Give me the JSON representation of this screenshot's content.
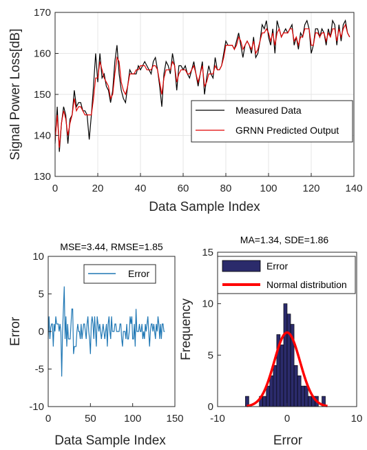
{
  "chart_data": [
    {
      "type": "line",
      "title": "",
      "xlabel": "Data Sample Index",
      "ylabel": "Signal Power Loss[dB]",
      "xlim": [
        0,
        140
      ],
      "ylim": [
        130,
        170
      ],
      "xticks": [
        "0",
        "20",
        "40",
        "60",
        "80",
        "100",
        "120",
        "140"
      ],
      "yticks": [
        "130",
        "140",
        "150",
        "160",
        "170"
      ],
      "grid": true,
      "legend_position": "lower-right",
      "colors": {
        "measured": "#000000",
        "predicted": "#e00000"
      },
      "series": [
        {
          "name": "Measured Data",
          "values": [
            138,
            147,
            136,
            143,
            147,
            145,
            138,
            144,
            145,
            151,
            147,
            148,
            148,
            146,
            146,
            145,
            139,
            145,
            152,
            160,
            153,
            160,
            154,
            155,
            152,
            151,
            148,
            151,
            158,
            162,
            155,
            151,
            149,
            148,
            152,
            156,
            155,
            155,
            155,
            157,
            156,
            157,
            158,
            157,
            156,
            155,
            158,
            159,
            156,
            152,
            147,
            155,
            158,
            157,
            155,
            160,
            157,
            151,
            157,
            157,
            156,
            157,
            155,
            154,
            156,
            158,
            155,
            152,
            155,
            158,
            150,
            154,
            157,
            155,
            154,
            159,
            156,
            156,
            157,
            160,
            163,
            162,
            162,
            162,
            161,
            163,
            165,
            162,
            159,
            162,
            163,
            162,
            160,
            164,
            159,
            160,
            163,
            167,
            166,
            168,
            164,
            162,
            166,
            160,
            168,
            166,
            164,
            165,
            166,
            165,
            166,
            167,
            162,
            164,
            161,
            165,
            164,
            167,
            168,
            166,
            160,
            162,
            166,
            166,
            164,
            166,
            165,
            162,
            166,
            164,
            168,
            167,
            162,
            167,
            163,
            167,
            168,
            165,
            164
          ]
        },
        {
          "name": "GRNN Predicted Output",
          "values": [
            139,
            145,
            137,
            143,
            146,
            144,
            140,
            143,
            145,
            149,
            146,
            147,
            147,
            146,
            145,
            145,
            145,
            145,
            149,
            154,
            154,
            158,
            156,
            154,
            153,
            152,
            149,
            150,
            155,
            159,
            158,
            153,
            151,
            150,
            152,
            155,
            155,
            155,
            156,
            156,
            157,
            157,
            157,
            156,
            156,
            156,
            157,
            157,
            156,
            153,
            150,
            154,
            156,
            156,
            156,
            158,
            157,
            153,
            155,
            156,
            156,
            156,
            155,
            155,
            156,
            157,
            155,
            153,
            155,
            157,
            152,
            153,
            155,
            155,
            155,
            157,
            156,
            156,
            157,
            159,
            162,
            162,
            162,
            162,
            161,
            162,
            164,
            163,
            161,
            162,
            163,
            162,
            161,
            163,
            160,
            161,
            163,
            165,
            165,
            166,
            165,
            163,
            165,
            162,
            165,
            166,
            164,
            165,
            165,
            165,
            166,
            166,
            163,
            164,
            162,
            164,
            164,
            166,
            166,
            166,
            162,
            162,
            165,
            165,
            164,
            165,
            165,
            163,
            165,
            164,
            166,
            166,
            163,
            166,
            164,
            166,
            167,
            165,
            164
          ]
        }
      ]
    },
    {
      "type": "line",
      "title": "MSE=3.44, RMSE=1.85",
      "xlabel": "Data Sample Index",
      "ylabel": "Error",
      "xlim": [
        0,
        150
      ],
      "ylim": [
        -10,
        10
      ],
      "xticks": [
        "0",
        "50",
        "100",
        "150"
      ],
      "yticks": [
        "-10",
        "-5",
        "0",
        "5",
        "10"
      ],
      "grid": false,
      "legend_position": "top-right",
      "colors": {
        "error": "#1f77b4"
      },
      "series": [
        {
          "name": "Error",
          "values": [
            -1,
            2,
            -1,
            0.5,
            1,
            1,
            -2,
            1,
            0,
            2,
            1,
            1,
            1,
            0,
            1,
            0,
            -6,
            0,
            3,
            6,
            -1,
            2,
            -2,
            1,
            -1,
            -1,
            -1,
            1,
            3,
            3,
            -3,
            -2,
            -2,
            -2,
            0,
            1,
            0,
            0,
            -1,
            1,
            -1,
            0,
            1,
            1,
            0,
            -1,
            1,
            2,
            0,
            -1,
            -3,
            1,
            2,
            1,
            -1,
            2,
            0,
            -2,
            2,
            1,
            0,
            1,
            0,
            -1,
            0,
            1,
            0,
            -1,
            0,
            1,
            -2,
            1,
            2,
            0,
            -1,
            2,
            0,
            0,
            0,
            1,
            1,
            0,
            0,
            0,
            0,
            1,
            1,
            -1,
            -2,
            0,
            0,
            0,
            -1,
            1,
            -1,
            -1,
            0,
            2,
            1,
            2,
            -1,
            -1,
            1,
            -2,
            3,
            0,
            0,
            0,
            1,
            0,
            0,
            1,
            -1,
            0,
            -1,
            1,
            0,
            1,
            2,
            0,
            -2,
            0,
            1,
            1,
            0,
            1,
            0,
            -1,
            1,
            0,
            2,
            1,
            -1,
            1,
            -1,
            1,
            1,
            0,
            0
          ]
        }
      ]
    },
    {
      "type": "bar",
      "title": "MA=1.34, SDE=1.86",
      "xlabel": "Error",
      "ylabel": "Frequency",
      "xlim": [
        -10,
        10
      ],
      "ylim": [
        0,
        15
      ],
      "xticks": [
        "-10",
        "0",
        "10"
      ],
      "yticks": [
        "0",
        "5",
        "10",
        "15"
      ],
      "grid": false,
      "legend_position": "top",
      "colors": {
        "bars": "#2b2b6b",
        "normal": "#ff0000"
      },
      "histogram": {
        "name": "Error",
        "bin_centers": [
          -5.75,
          -5.25,
          -4.75,
          -4.25,
          -3.75,
          -3.25,
          -2.75,
          -2.25,
          -1.75,
          -1.25,
          -0.75,
          -0.25,
          0.25,
          0.75,
          1.25,
          1.75,
          2.25,
          2.75,
          3.25,
          3.75,
          4.25,
          4.75,
          5.25,
          5.75
        ],
        "values": [
          1,
          0,
          0,
          0,
          1,
          1,
          2,
          3,
          4,
          7,
          6,
          10,
          9,
          8,
          4,
          3,
          2,
          2,
          1,
          1,
          1,
          0,
          1,
          0
        ]
      },
      "normal_fit": {
        "name": "Normal distribution",
        "mean": 0,
        "peak": 7.2,
        "sd": 1.86
      }
    }
  ]
}
